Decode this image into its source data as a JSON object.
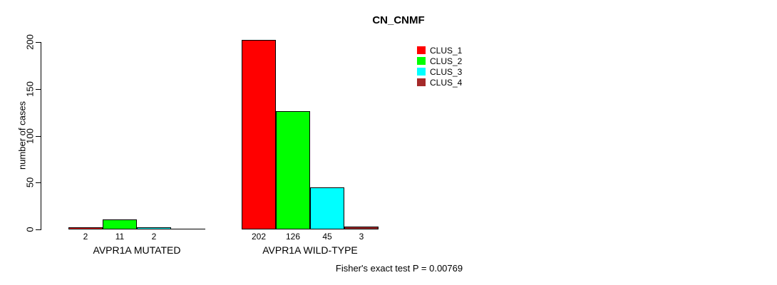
{
  "title": "CN_CNMF",
  "footer": "Fisher's exact test P = 0.00769",
  "chart_data": {
    "type": "bar",
    "grouped": true,
    "categories": [
      "AVPR1A MUTATED",
      "AVPR1A WILD-TYPE"
    ],
    "series": [
      {
        "name": "CLUS_1",
        "color": "#FF0000",
        "values": [
          2,
          202
        ]
      },
      {
        "name": "CLUS_2",
        "color": "#00FF00",
        "values": [
          11,
          126
        ]
      },
      {
        "name": "CLUS_3",
        "color": "#00FFFF",
        "values": [
          2,
          45
        ]
      },
      {
        "name": "CLUS_4",
        "color": "#A52A2A",
        "values": [
          0,
          3
        ]
      }
    ],
    "title": "CN_CNMF",
    "xlabel": "",
    "ylabel": "number of cases",
    "ylim": [
      0,
      200
    ],
    "yticks": [
      0,
      50,
      100,
      150,
      200
    ],
    "bar_value_labels_shown": true,
    "show_zero_value_labels": false,
    "legend_position": "top-right",
    "grid": false,
    "annotation": "Fisher's exact test P = 0.00769"
  }
}
